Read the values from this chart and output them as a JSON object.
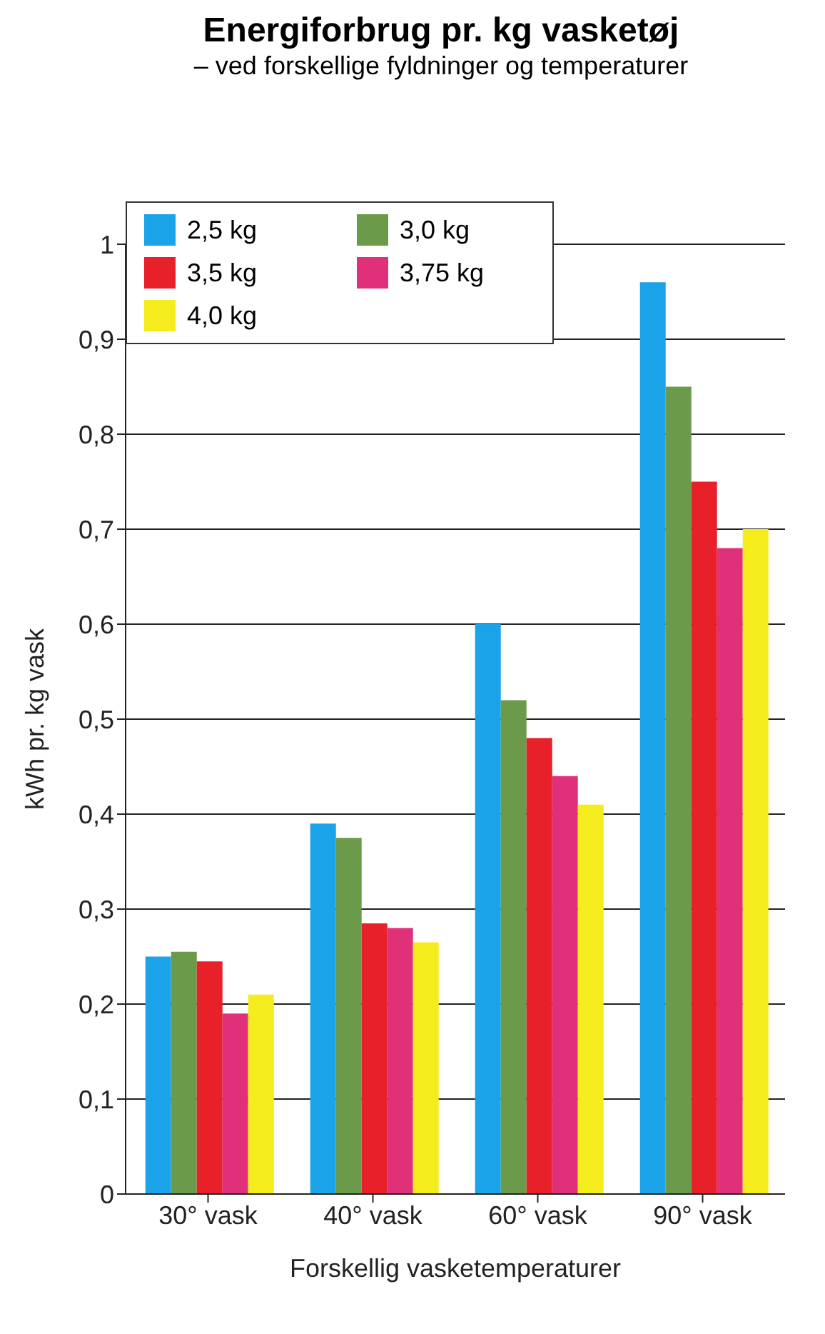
{
  "chart_data": {
    "type": "bar",
    "title": "Energiforbrug pr. kg vasketøj",
    "subtitle": "– ved forskellige fyldninger og temperaturer",
    "xlabel": "Forskellig vasketemperaturer",
    "ylabel": "kWh pr. kg vask",
    "categories": [
      "30° vask",
      "40° vask",
      "60° vask",
      "90° vask"
    ],
    "series": [
      {
        "name": "2,5 kg",
        "color": "#1aa3e8",
        "values": [
          0.25,
          0.39,
          0.6,
          0.96
        ]
      },
      {
        "name": "3,0 kg",
        "color": "#6a9a4a",
        "values": [
          0.255,
          0.375,
          0.52,
          0.85
        ]
      },
      {
        "name": "3,5 kg",
        "color": "#e8202a",
        "values": [
          0.245,
          0.285,
          0.48,
          0.75
        ]
      },
      {
        "name": "3,75 kg",
        "color": "#e0307a",
        "values": [
          0.19,
          0.28,
          0.44,
          0.68
        ]
      },
      {
        "name": "4,0 kg",
        "color": "#f5ec1e",
        "values": [
          0.21,
          0.265,
          0.41,
          0.7
        ]
      }
    ],
    "ylim": [
      0,
      1
    ],
    "yticks": [
      {
        "value": 0,
        "label": "0"
      },
      {
        "value": 0.1,
        "label": "0,1"
      },
      {
        "value": 0.2,
        "label": "0,2"
      },
      {
        "value": 0.3,
        "label": "0,3"
      },
      {
        "value": 0.4,
        "label": "0,4"
      },
      {
        "value": 0.5,
        "label": "0,5"
      },
      {
        "value": 0.6,
        "label": "0,6"
      },
      {
        "value": 0.7,
        "label": "0,7"
      },
      {
        "value": 0.8,
        "label": "0,8"
      },
      {
        "value": 0.9,
        "label": "0,9"
      },
      {
        "value": 1,
        "label": "1"
      }
    ],
    "grid": "y",
    "legend": "top left"
  }
}
